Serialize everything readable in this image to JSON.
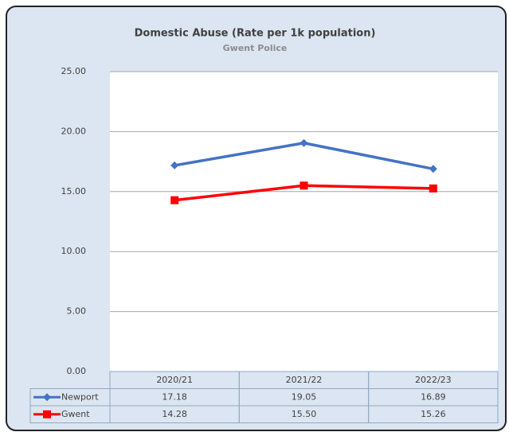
{
  "chart_data": {
    "type": "line",
    "title": "Domestic Abuse (Rate per 1k population)",
    "subtitle": "Gwent Police",
    "categories": [
      "2020/21",
      "2021/22",
      "2022/23"
    ],
    "series": [
      {
        "name": "Newport",
        "color": "#4472c4",
        "marker": "diamond",
        "values": [
          17.18,
          19.05,
          16.89
        ],
        "value_labels": [
          "17.18",
          "19.05",
          "16.89"
        ]
      },
      {
        "name": "Gwent",
        "color": "#ff0000",
        "marker": "square",
        "values": [
          14.28,
          15.5,
          15.26
        ],
        "value_labels": [
          "14.28",
          "15.50",
          "15.26"
        ]
      }
    ],
    "ylim": [
      0,
      25
    ],
    "yticks": [
      {
        "value": 0,
        "label": "0.00"
      },
      {
        "value": 5,
        "label": "5.00"
      },
      {
        "value": 10,
        "label": "10.00"
      },
      {
        "value": 15,
        "label": "15.00"
      },
      {
        "value": 20,
        "label": "20.00"
      },
      {
        "value": 25,
        "label": "25.00"
      }
    ],
    "grid": true
  }
}
